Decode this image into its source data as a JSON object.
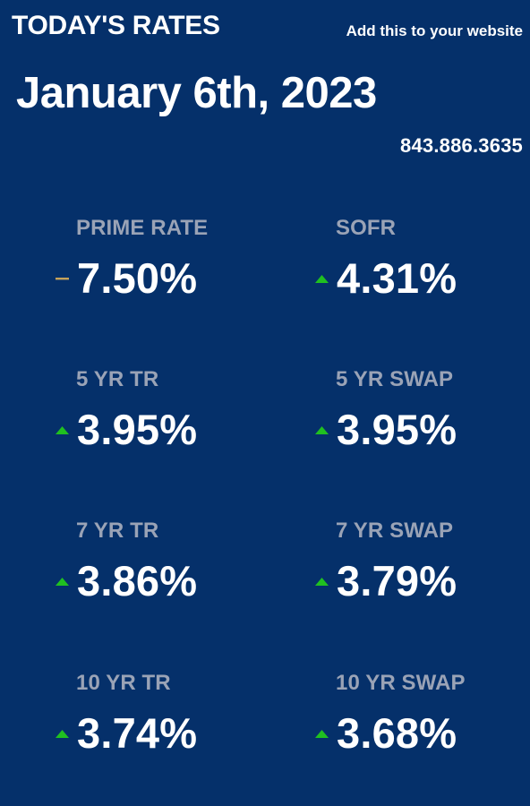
{
  "header": {
    "title": "TODAY'S RATES",
    "add_link": "Add this to your website"
  },
  "date": "January 6th, 2023",
  "phone": "843.886.3635",
  "colors": {
    "background": "#05306a",
    "label": "#9aa3b6",
    "value": "#ffffff",
    "up": "#20c020",
    "unchanged": "#c6a25a"
  },
  "rates": [
    {
      "label": "PRIME RATE",
      "value": "7.50%",
      "trend": "unchanged",
      "icon": "dash-icon"
    },
    {
      "label": "SOFR",
      "value": "4.31%",
      "trend": "up",
      "icon": "up-arrow-icon"
    },
    {
      "label": "5 YR TR",
      "value": "3.95%",
      "trend": "up",
      "icon": "up-arrow-icon"
    },
    {
      "label": "5 YR SWAP",
      "value": "3.95%",
      "trend": "up",
      "icon": "up-arrow-icon"
    },
    {
      "label": "7 YR TR",
      "value": "3.86%",
      "trend": "up",
      "icon": "up-arrow-icon"
    },
    {
      "label": "7 YR SWAP",
      "value": "3.79%",
      "trend": "up",
      "icon": "up-arrow-icon"
    },
    {
      "label": "10 YR TR",
      "value": "3.74%",
      "trend": "up",
      "icon": "up-arrow-icon"
    },
    {
      "label": "10 YR SWAP",
      "value": "3.68%",
      "trend": "up",
      "icon": "up-arrow-icon"
    }
  ]
}
